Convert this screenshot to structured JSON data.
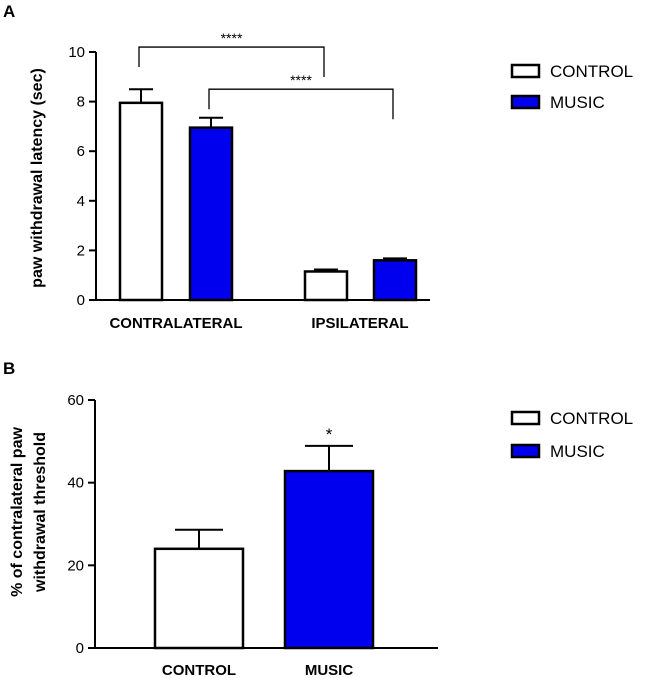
{
  "chart_data": [
    {
      "panel": "A",
      "type": "bar",
      "categories": [
        "CONTRALATERAL",
        "IPSILATERAL"
      ],
      "series": [
        {
          "name": "CONTROL",
          "values": [
            7.95,
            1.15
          ],
          "errors": [
            0.55,
            0.08
          ],
          "color": "#ffffff"
        },
        {
          "name": "MUSIC",
          "values": [
            6.95,
            1.6
          ],
          "errors": [
            0.4,
            0.08
          ],
          "color": "#0000ee"
        }
      ],
      "ylabel": "paw withdrawal latency (sec)",
      "xlabel": "",
      "ylim": [
        0,
        10
      ],
      "yticks": [
        "0",
        "2",
        "4",
        "6",
        "8",
        "10"
      ],
      "legend": [
        "CONTROL",
        "MUSIC"
      ],
      "legend_position": "top-right",
      "annotations": [
        {
          "label": "****",
          "from": "CONTRALATERAL/CONTROL",
          "to": "IPSILATERAL/CONTROL"
        },
        {
          "label": "****",
          "from": "CONTRALATERAL/MUSIC",
          "to": "IPSILATERAL/MUSIC"
        }
      ]
    },
    {
      "panel": "B",
      "type": "bar",
      "categories": [
        "CONTROL",
        "MUSIC"
      ],
      "values": [
        24,
        42.8
      ],
      "errors": [
        4.6,
        6.1
      ],
      "colors": [
        "#ffffff",
        "#0000ee"
      ],
      "ylabel": "% of contralateral paw withdrawal threshold",
      "ylabel_lines": [
        "% of contralateral paw",
        "withdrawal threshold"
      ],
      "xlabel": "",
      "ylim": [
        0,
        60
      ],
      "yticks": [
        "0",
        "20",
        "40",
        "60"
      ],
      "legend": [
        "CONTROL",
        "MUSIC"
      ],
      "legend_position": "top-right",
      "annotations": [
        {
          "label": "*",
          "over": "MUSIC"
        }
      ]
    }
  ]
}
